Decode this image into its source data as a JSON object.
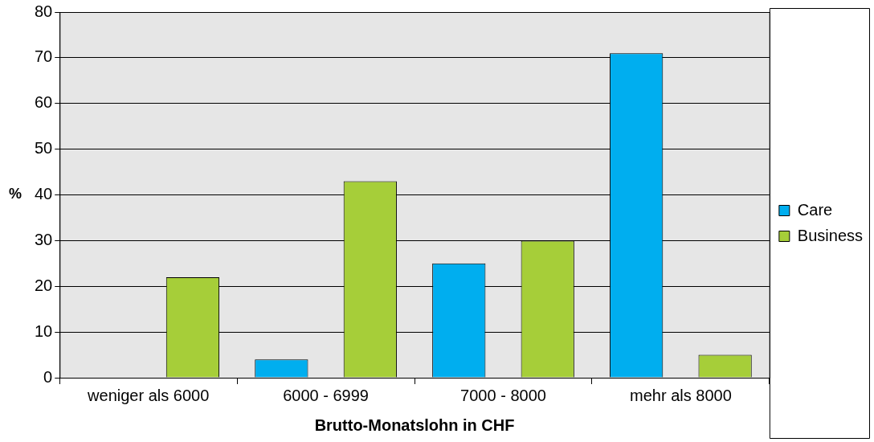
{
  "chart_data": {
    "type": "bar",
    "xlabel": "Brutto-Monatslohn in CHF",
    "ylabel": "%",
    "categories": [
      "weniger als 6000",
      "6000 - 6999",
      "7000 - 8000",
      "mehr als 8000"
    ],
    "series": [
      {
        "name": "Care",
        "color": "#00aeef",
        "values": [
          0,
          4,
          25,
          71
        ]
      },
      {
        "name": "Business",
        "color": "#a6ce39",
        "values": [
          22,
          43,
          30,
          5
        ]
      }
    ],
    "ylim": [
      0,
      80
    ],
    "yticks": [
      0,
      10,
      20,
      30,
      40,
      50,
      60,
      70,
      80
    ],
    "grid": "y",
    "legend": "right"
  }
}
